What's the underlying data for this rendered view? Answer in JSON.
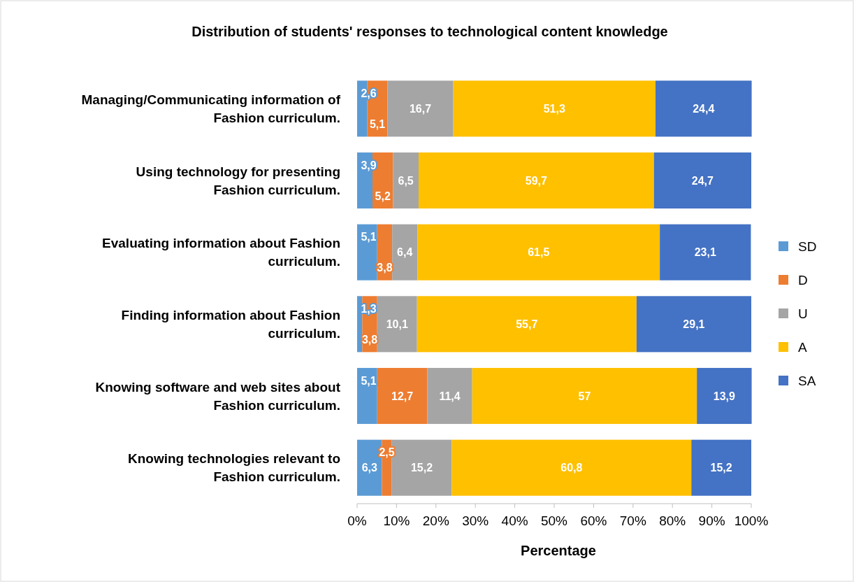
{
  "chart_data": {
    "type": "bar",
    "orientation": "horizontal",
    "stacked": true,
    "title": "Distribution of students' responses to technological content knowledge",
    "xlabel": "Percentage",
    "categories": [
      "Managing/Communicating information of Fashion curriculum.",
      "Using technology for presenting Fashion curriculum.",
      "Evaluating information about Fashion curriculum.",
      "Finding information about Fashion curriculum.",
      "Knowing  software and web sites about Fashion curriculum.",
      "Knowing technologies relevant to Fashion curriculum."
    ],
    "series": [
      {
        "name": "SD",
        "color": "#5b9bd5",
        "values": [
          2.6,
          3.9,
          5.1,
          1.3,
          5.1,
          6.3
        ],
        "value_labels": [
          "2,6",
          "3,9",
          "5,1",
          "1,3",
          "5,1",
          "6,3"
        ]
      },
      {
        "name": "D",
        "color": "#ed7d31",
        "values": [
          5.1,
          5.2,
          3.8,
          3.8,
          12.7,
          2.5
        ],
        "value_labels": [
          "5,1",
          "5,2",
          "3,8",
          "3,8",
          "12,7",
          "2,5"
        ]
      },
      {
        "name": "U",
        "color": "#a5a5a5",
        "values": [
          16.7,
          6.5,
          6.4,
          10.1,
          11.4,
          15.2
        ],
        "value_labels": [
          "16,7",
          "6,5",
          "6,4",
          "10,1",
          "11,4",
          "15,2"
        ]
      },
      {
        "name": "A",
        "color": "#ffc000",
        "values": [
          51.3,
          59.7,
          61.5,
          55.7,
          57,
          60.8
        ],
        "value_labels": [
          "51,3",
          "59,7",
          "61,5",
          "55,7",
          "57",
          "60,8"
        ]
      },
      {
        "name": "SA",
        "color": "#4472c4",
        "values": [
          24.4,
          24.7,
          23.1,
          29.1,
          13.9,
          15.2
        ],
        "value_labels": [
          "24,4",
          "24,7",
          "23,1",
          "29,1",
          "13,9",
          "15,2"
        ]
      }
    ],
    "xlim": [
      0,
      100
    ],
    "xticks": [
      {
        "value": 0,
        "label": "0%"
      },
      {
        "value": 10,
        "label": "10%"
      },
      {
        "value": 20,
        "label": "20%"
      },
      {
        "value": 30,
        "label": "30%"
      },
      {
        "value": 40,
        "label": "40%"
      },
      {
        "value": 50,
        "label": "50%"
      },
      {
        "value": 60,
        "label": "60%"
      },
      {
        "value": 70,
        "label": "70%"
      },
      {
        "value": 80,
        "label": "80%"
      },
      {
        "value": 90,
        "label": "90%"
      },
      {
        "value": 100,
        "label": "100%"
      }
    ],
    "grid": false,
    "legend": "right"
  }
}
